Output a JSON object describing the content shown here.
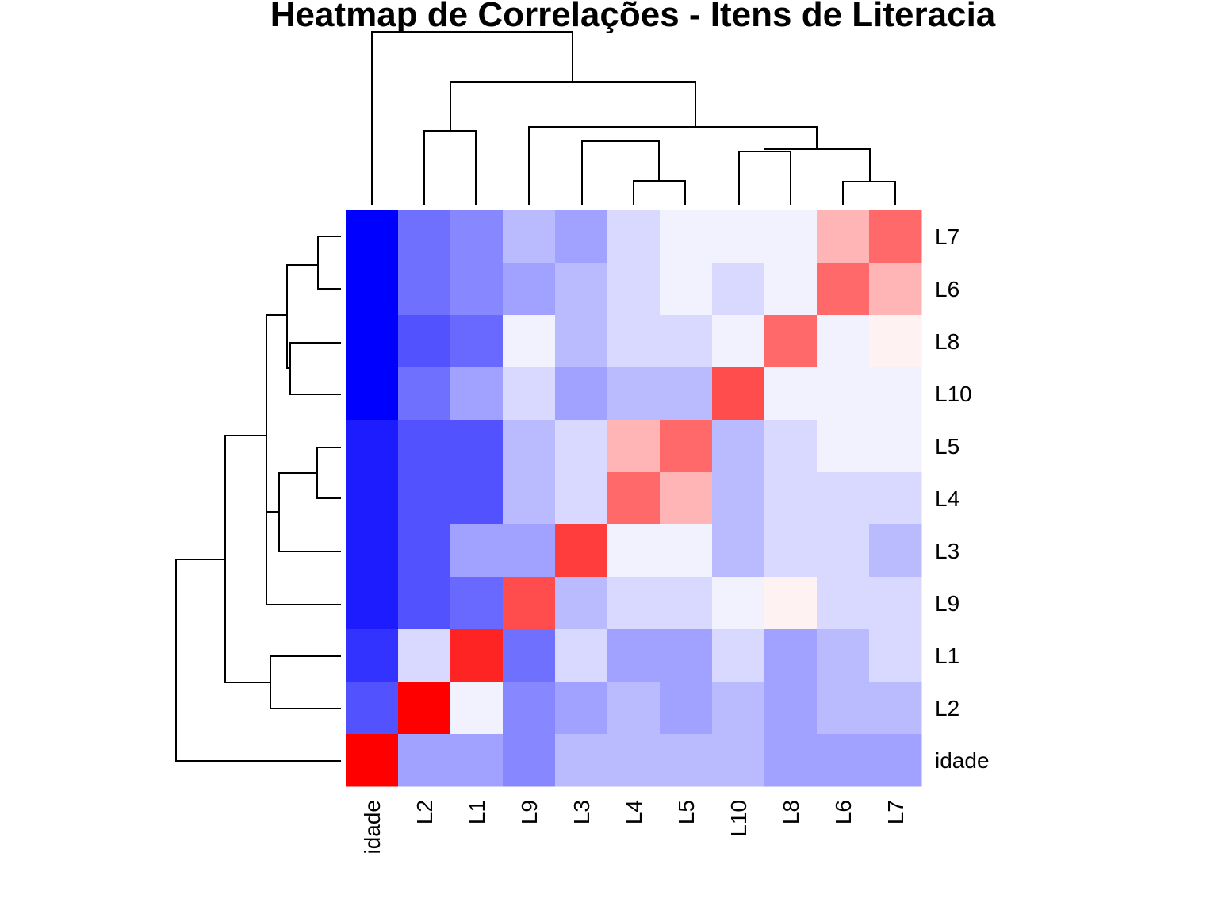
{
  "chart_data": {
    "type": "heatmap",
    "title": "Heatmap de Correlações - Itens de Literacia",
    "columns": [
      "idade",
      "L2",
      "L1",
      "L9",
      "L3",
      "L4",
      "L5",
      "L10",
      "L8",
      "L6",
      "L7"
    ],
    "rows": [
      "L7",
      "L6",
      "L8",
      "L10",
      "L5",
      "L4",
      "L3",
      "L9",
      "L1",
      "L2",
      "idade"
    ],
    "colors": {
      "low": "#0000FF",
      "mid": "#FFFFFF",
      "high": "#FF0000"
    },
    "dendrogram": {
      "columns": true,
      "rows": true
    },
    "values": [
      [
        -1.0,
        -0.56,
        -0.47,
        -0.27,
        -0.37,
        -0.15,
        -0.05,
        -0.05,
        -0.05,
        0.29,
        0.59
      ],
      [
        -1.0,
        -0.56,
        -0.47,
        -0.37,
        -0.27,
        -0.15,
        -0.05,
        -0.15,
        -0.05,
        0.59,
        0.29
      ],
      [
        -1.0,
        -0.68,
        -0.59,
        -0.05,
        -0.27,
        -0.15,
        -0.15,
        -0.05,
        0.59,
        -0.05,
        0.05
      ],
      [
        -1.0,
        -0.56,
        -0.37,
        -0.15,
        -0.37,
        -0.27,
        -0.27,
        0.7,
        -0.05,
        -0.05,
        -0.05
      ],
      [
        -0.89,
        -0.68,
        -0.68,
        -0.27,
        -0.15,
        0.29,
        0.59,
        -0.27,
        -0.15,
        -0.05,
        -0.05
      ],
      [
        -0.89,
        -0.68,
        -0.68,
        -0.27,
        -0.15,
        0.59,
        0.29,
        -0.27,
        -0.15,
        -0.15,
        -0.15
      ],
      [
        -0.89,
        -0.68,
        -0.37,
        -0.37,
        0.76,
        -0.05,
        -0.05,
        -0.27,
        -0.15,
        -0.15,
        -0.27
      ],
      [
        -0.89,
        -0.68,
        -0.59,
        0.7,
        -0.27,
        -0.15,
        -0.15,
        -0.05,
        0.05,
        -0.15,
        -0.15
      ],
      [
        -0.8,
        -0.15,
        0.86,
        -0.56,
        -0.15,
        -0.37,
        -0.37,
        -0.15,
        -0.37,
        -0.27,
        -0.15
      ],
      [
        -0.68,
        1.0,
        -0.05,
        -0.47,
        -0.37,
        -0.27,
        -0.37,
        -0.27,
        -0.37,
        -0.27,
        -0.27
      ],
      [
        1.0,
        -0.37,
        -0.37,
        -0.47,
        -0.27,
        -0.27,
        -0.27,
        -0.27,
        -0.37,
        -0.37,
        -0.37
      ]
    ]
  }
}
